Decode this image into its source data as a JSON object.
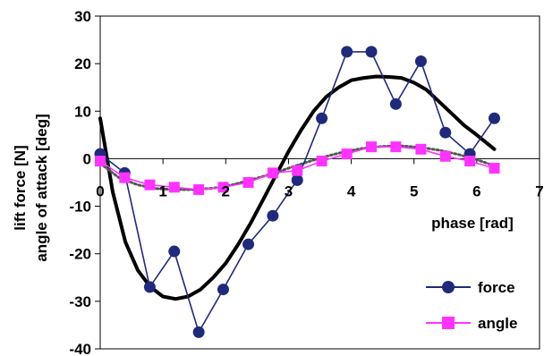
{
  "chart_data": {
    "type": "line",
    "title": "",
    "xlabel": "phase [rad]",
    "ylabel_lines": [
      "lift force [N]",
      "angle of attack [deg]"
    ],
    "xlim": [
      0,
      7
    ],
    "ylim": [
      -40,
      30
    ],
    "x_ticks": [
      0,
      1,
      2,
      3,
      4,
      5,
      6,
      7
    ],
    "y_ticks": [
      -40,
      -30,
      -20,
      -10,
      0,
      10,
      20,
      30
    ],
    "x_tick_labels": [
      "0",
      "1",
      "2",
      "3",
      "4",
      "5",
      "6",
      "7"
    ],
    "y_tick_labels": [
      "-40",
      "-30",
      "-20",
      "-10",
      "0",
      "10",
      "20",
      "30"
    ],
    "legend_position": "bottom-right",
    "series": [
      {
        "name": "force",
        "color": "#1f2a7a",
        "marker": "circle",
        "x": [
          0,
          0.39,
          0.79,
          1.18,
          1.57,
          1.96,
          2.36,
          2.75,
          3.14,
          3.53,
          3.93,
          4.32,
          4.71,
          5.11,
          5.5,
          5.89,
          6.28
        ],
        "y": [
          1,
          -3,
          -27,
          -19.5,
          -36.5,
          -27.5,
          -18,
          -12,
          -4.5,
          8.5,
          22.5,
          22.5,
          11.5,
          20.5,
          5.5,
          1,
          8.5
        ]
      },
      {
        "name": "angle",
        "color": "#ff33ff",
        "marker": "square",
        "x": [
          0,
          0.39,
          0.79,
          1.18,
          1.57,
          1.96,
          2.36,
          2.75,
          3.14,
          3.53,
          3.93,
          4.32,
          4.71,
          5.11,
          5.5,
          5.89,
          6.28
        ],
        "y": [
          -0.5,
          -4,
          -5.5,
          -6,
          -6.5,
          -6,
          -5,
          -3,
          -2.5,
          -0.5,
          1,
          2.5,
          2.5,
          2,
          0.5,
          -0.5,
          -2
        ]
      }
    ],
    "fits": [
      {
        "color": "#000000",
        "style": "solid",
        "x": [
          0,
          0.2,
          0.4,
          0.6,
          0.8,
          1.0,
          1.2,
          1.4,
          1.6,
          1.8,
          2.0,
          2.2,
          2.4,
          2.6,
          2.8,
          3.0,
          3.2,
          3.4,
          3.6,
          3.8,
          4.0,
          4.2,
          4.4,
          4.6,
          4.8,
          5.0,
          5.2,
          5.4,
          5.6,
          5.8,
          6.0,
          6.28
        ],
        "y": [
          8.5,
          -7,
          -17.5,
          -23.5,
          -27,
          -29,
          -29.5,
          -29,
          -27.5,
          -25,
          -22,
          -18,
          -13.5,
          -8.5,
          -3.5,
          1.5,
          6,
          10,
          13,
          15,
          16.5,
          17,
          17.3,
          17.2,
          17,
          16,
          14.5,
          12,
          9.5,
          7,
          5,
          2
        ]
      },
      {
        "color": "#555555",
        "style": "dashed",
        "x": [
          0,
          0.3,
          0.6,
          0.9,
          1.2,
          1.5,
          1.8,
          2.1,
          2.4,
          2.7,
          3.0,
          3.3,
          3.6,
          3.9,
          4.2,
          4.5,
          4.8,
          5.1,
          5.4,
          5.7,
          6.0,
          6.28
        ],
        "y": [
          -1,
          -4,
          -5.5,
          -6.3,
          -6.5,
          -6.5,
          -6.2,
          -5.5,
          -4.5,
          -3.3,
          -2,
          -0.7,
          0.5,
          1.5,
          2.2,
          2.6,
          2.7,
          2.4,
          1.8,
          0.9,
          -0.2,
          -1.5
        ]
      }
    ]
  }
}
